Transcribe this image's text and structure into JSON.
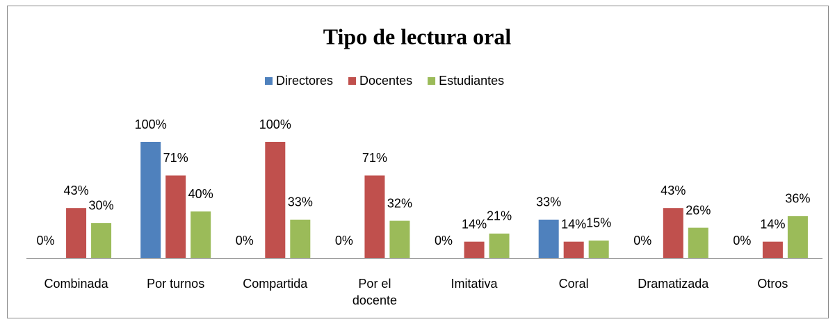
{
  "chart_data": {
    "type": "bar",
    "title": "Tipo de lectura oral",
    "categories": [
      "Combinada",
      "Por turnos",
      "Compartida",
      "Por el docente",
      "Imitativa",
      "Coral",
      "Dramatizada",
      "Otros"
    ],
    "series": [
      {
        "name": "Directores",
        "color": "#4f81bd",
        "values": [
          0,
          100,
          0,
          0,
          0,
          33,
          0,
          0
        ],
        "value_labels": [
          "0%",
          "100%",
          "0%",
          "0%",
          "0%",
          "33%",
          "0%",
          "0%"
        ]
      },
      {
        "name": "Docentes",
        "color": "#c0504d",
        "values": [
          43,
          71,
          100,
          71,
          14,
          14,
          43,
          14
        ],
        "value_labels": [
          "43%",
          "71%",
          "100%",
          "71%",
          "14%",
          "14%",
          "43%",
          "14%"
        ]
      },
      {
        "name": "Estudiantes",
        "color": "#9bbb59",
        "values": [
          30,
          40,
          33,
          32,
          21,
          15,
          26,
          36
        ],
        "value_labels": [
          "30%",
          "40%",
          "33%",
          "32%",
          "21%",
          "15%",
          "26%",
          "36%"
        ]
      }
    ],
    "ylim": [
      0,
      100
    ],
    "legend": "top"
  }
}
